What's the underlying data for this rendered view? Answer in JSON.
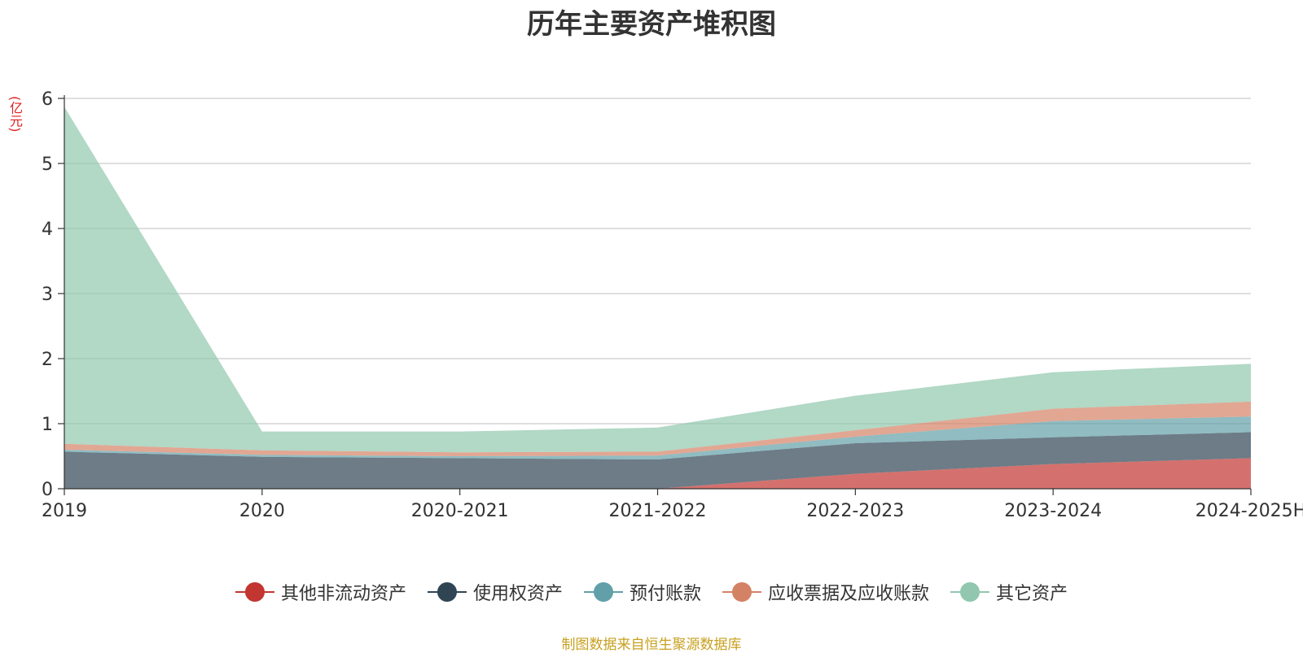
{
  "chart_data": {
    "type": "area",
    "stacked": true,
    "title": "历年主要资产堆积图",
    "y_unit": "(亿元)",
    "categories": [
      "2019",
      "2020",
      "2020-2021",
      "2021-2022",
      "2022-2023",
      "2023-2024",
      "2024-2025H"
    ],
    "y_ticks": [
      "0",
      "1",
      "2",
      "3",
      "4",
      "5",
      "6"
    ],
    "ylim": [
      0,
      6
    ],
    "grid": true,
    "legend_position": "bottom",
    "series": [
      {
        "name": "其他非流动资产",
        "color": "#c23531",
        "values": [
          0,
          0,
          0,
          0,
          0.23,
          0.38,
          0.47
        ]
      },
      {
        "name": "使用权资产",
        "color": "#2f4554",
        "values": [
          0.57,
          0.49,
          0.47,
          0.45,
          0.47,
          0.41,
          0.4
        ]
      },
      {
        "name": "预付账款",
        "color": "#61a0a8",
        "values": [
          0.03,
          0.03,
          0.03,
          0.06,
          0.1,
          0.25,
          0.24
        ]
      },
      {
        "name": "应收票据及应收账款",
        "color": "#d48265",
        "values": [
          0.09,
          0.07,
          0.06,
          0.06,
          0.1,
          0.19,
          0.23
        ]
      },
      {
        "name": "其它资产",
        "color": "#91c7ae",
        "values": [
          5.18,
          0.29,
          0.32,
          0.37,
          0.53,
          0.56,
          0.58
        ]
      }
    ]
  },
  "footer": {
    "source": "制图数据来自恒生聚源数据库"
  }
}
